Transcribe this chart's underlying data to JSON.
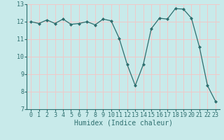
{
  "x": [
    0,
    1,
    2,
    3,
    4,
    5,
    6,
    7,
    8,
    9,
    10,
    11,
    12,
    13,
    14,
    15,
    16,
    17,
    18,
    19,
    20,
    21,
    22,
    23
  ],
  "y": [
    12.0,
    11.9,
    12.1,
    11.9,
    12.15,
    11.85,
    11.9,
    12.0,
    11.82,
    12.15,
    12.05,
    11.05,
    9.55,
    8.35,
    9.55,
    11.6,
    12.2,
    12.15,
    12.75,
    12.72,
    12.2,
    10.55,
    8.35,
    7.45
  ],
  "line_color": "#2d6e6e",
  "marker": "D",
  "marker_size": 2,
  "background_color": "#c8eaea",
  "grid_color": "#f0c8c8",
  "xlabel": "Humidex (Indice chaleur)",
  "xlim": [
    -0.5,
    23.5
  ],
  "ylim": [
    7,
    13
  ],
  "yticks": [
    7,
    8,
    9,
    10,
    11,
    12,
    13
  ],
  "xticks": [
    0,
    1,
    2,
    3,
    4,
    5,
    6,
    7,
    8,
    9,
    10,
    11,
    12,
    13,
    14,
    15,
    16,
    17,
    18,
    19,
    20,
    21,
    22,
    23
  ],
  "tick_label_fontsize": 6,
  "xlabel_fontsize": 7
}
